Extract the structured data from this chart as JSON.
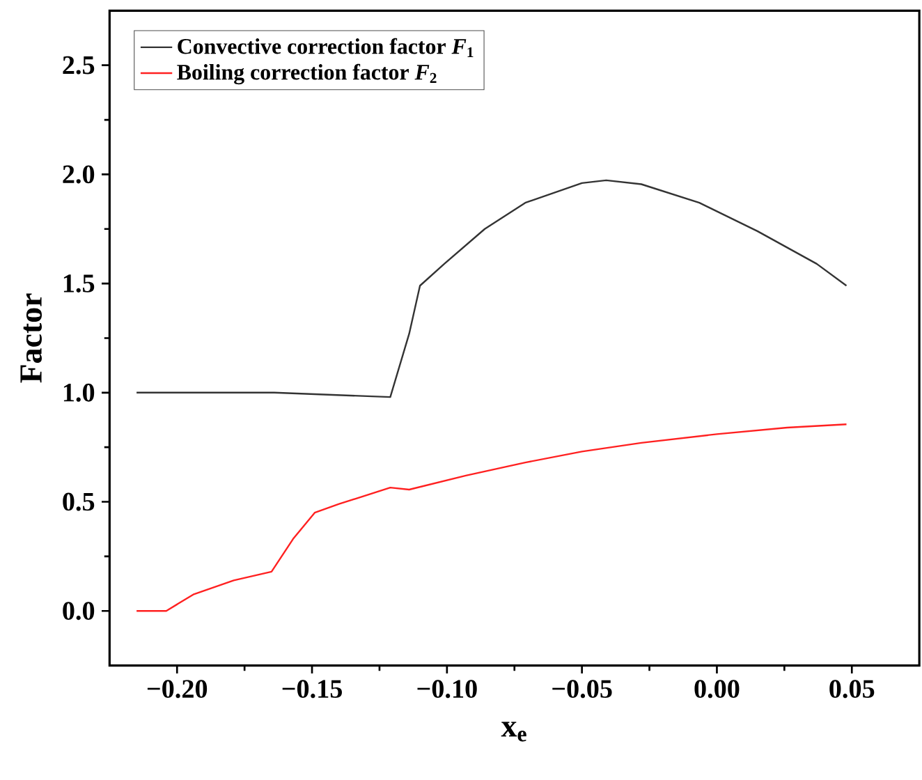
{
  "chart_data": {
    "type": "line",
    "xlabel": "x$_{e}$",
    "ylabel": "Factor",
    "xlim": [
      -0.225,
      0.075
    ],
    "ylim": [
      -0.25,
      2.75
    ],
    "xticks": [
      {
        "value": -0.2,
        "label": "−0.20"
      },
      {
        "value": -0.15,
        "label": "−0.15"
      },
      {
        "value": -0.1,
        "label": "−0.10"
      },
      {
        "value": -0.05,
        "label": "−0.05"
      },
      {
        "value": 0,
        "label": "0.00"
      },
      {
        "value": 0.05,
        "label": "0.05"
      }
    ],
    "yticks": [
      {
        "value": 0,
        "label": "0.0"
      },
      {
        "value": 0.5,
        "label": "0.5"
      },
      {
        "value": 1,
        "label": "1.0"
      },
      {
        "value": 1.5,
        "label": "1.5"
      },
      {
        "value": 2,
        "label": "2.0"
      },
      {
        "value": 2.5,
        "label": "2.5"
      }
    ],
    "legend": "top left",
    "grid": false,
    "line_style": "solid",
    "series": [
      {
        "name": "Convective correction factor *F*$_{1}$",
        "color": "#333333",
        "x": [
          -0.215,
          -0.164,
          -0.121,
          -0.114,
          -0.11,
          -0.101,
          -0.086,
          -0.071,
          -0.05,
          -0.041,
          -0.028,
          -0.0065,
          0.015,
          0.037,
          0.048
        ],
        "values": [
          1.0,
          1.0,
          0.98,
          1.27,
          1.49,
          1.59,
          1.75,
          1.87,
          1.96,
          1.973,
          1.955,
          1.87,
          1.74,
          1.59,
          1.49
        ]
      },
      {
        "name": "Boiling correction factor *F*$_{2}$",
        "color": "#ff2020",
        "x": [
          -0.215,
          -0.204,
          -0.194,
          -0.179,
          -0.165,
          -0.157,
          -0.149,
          -0.14,
          -0.121,
          -0.114,
          -0.093,
          -0.071,
          -0.05,
          -0.028,
          0.0,
          0.026,
          0.048
        ],
        "values": [
          0.0,
          0.0,
          0.075,
          0.14,
          0.18,
          0.33,
          0.45,
          0.49,
          0.565,
          0.556,
          0.62,
          0.68,
          0.73,
          0.77,
          0.81,
          0.84,
          0.855
        ]
      }
    ]
  }
}
